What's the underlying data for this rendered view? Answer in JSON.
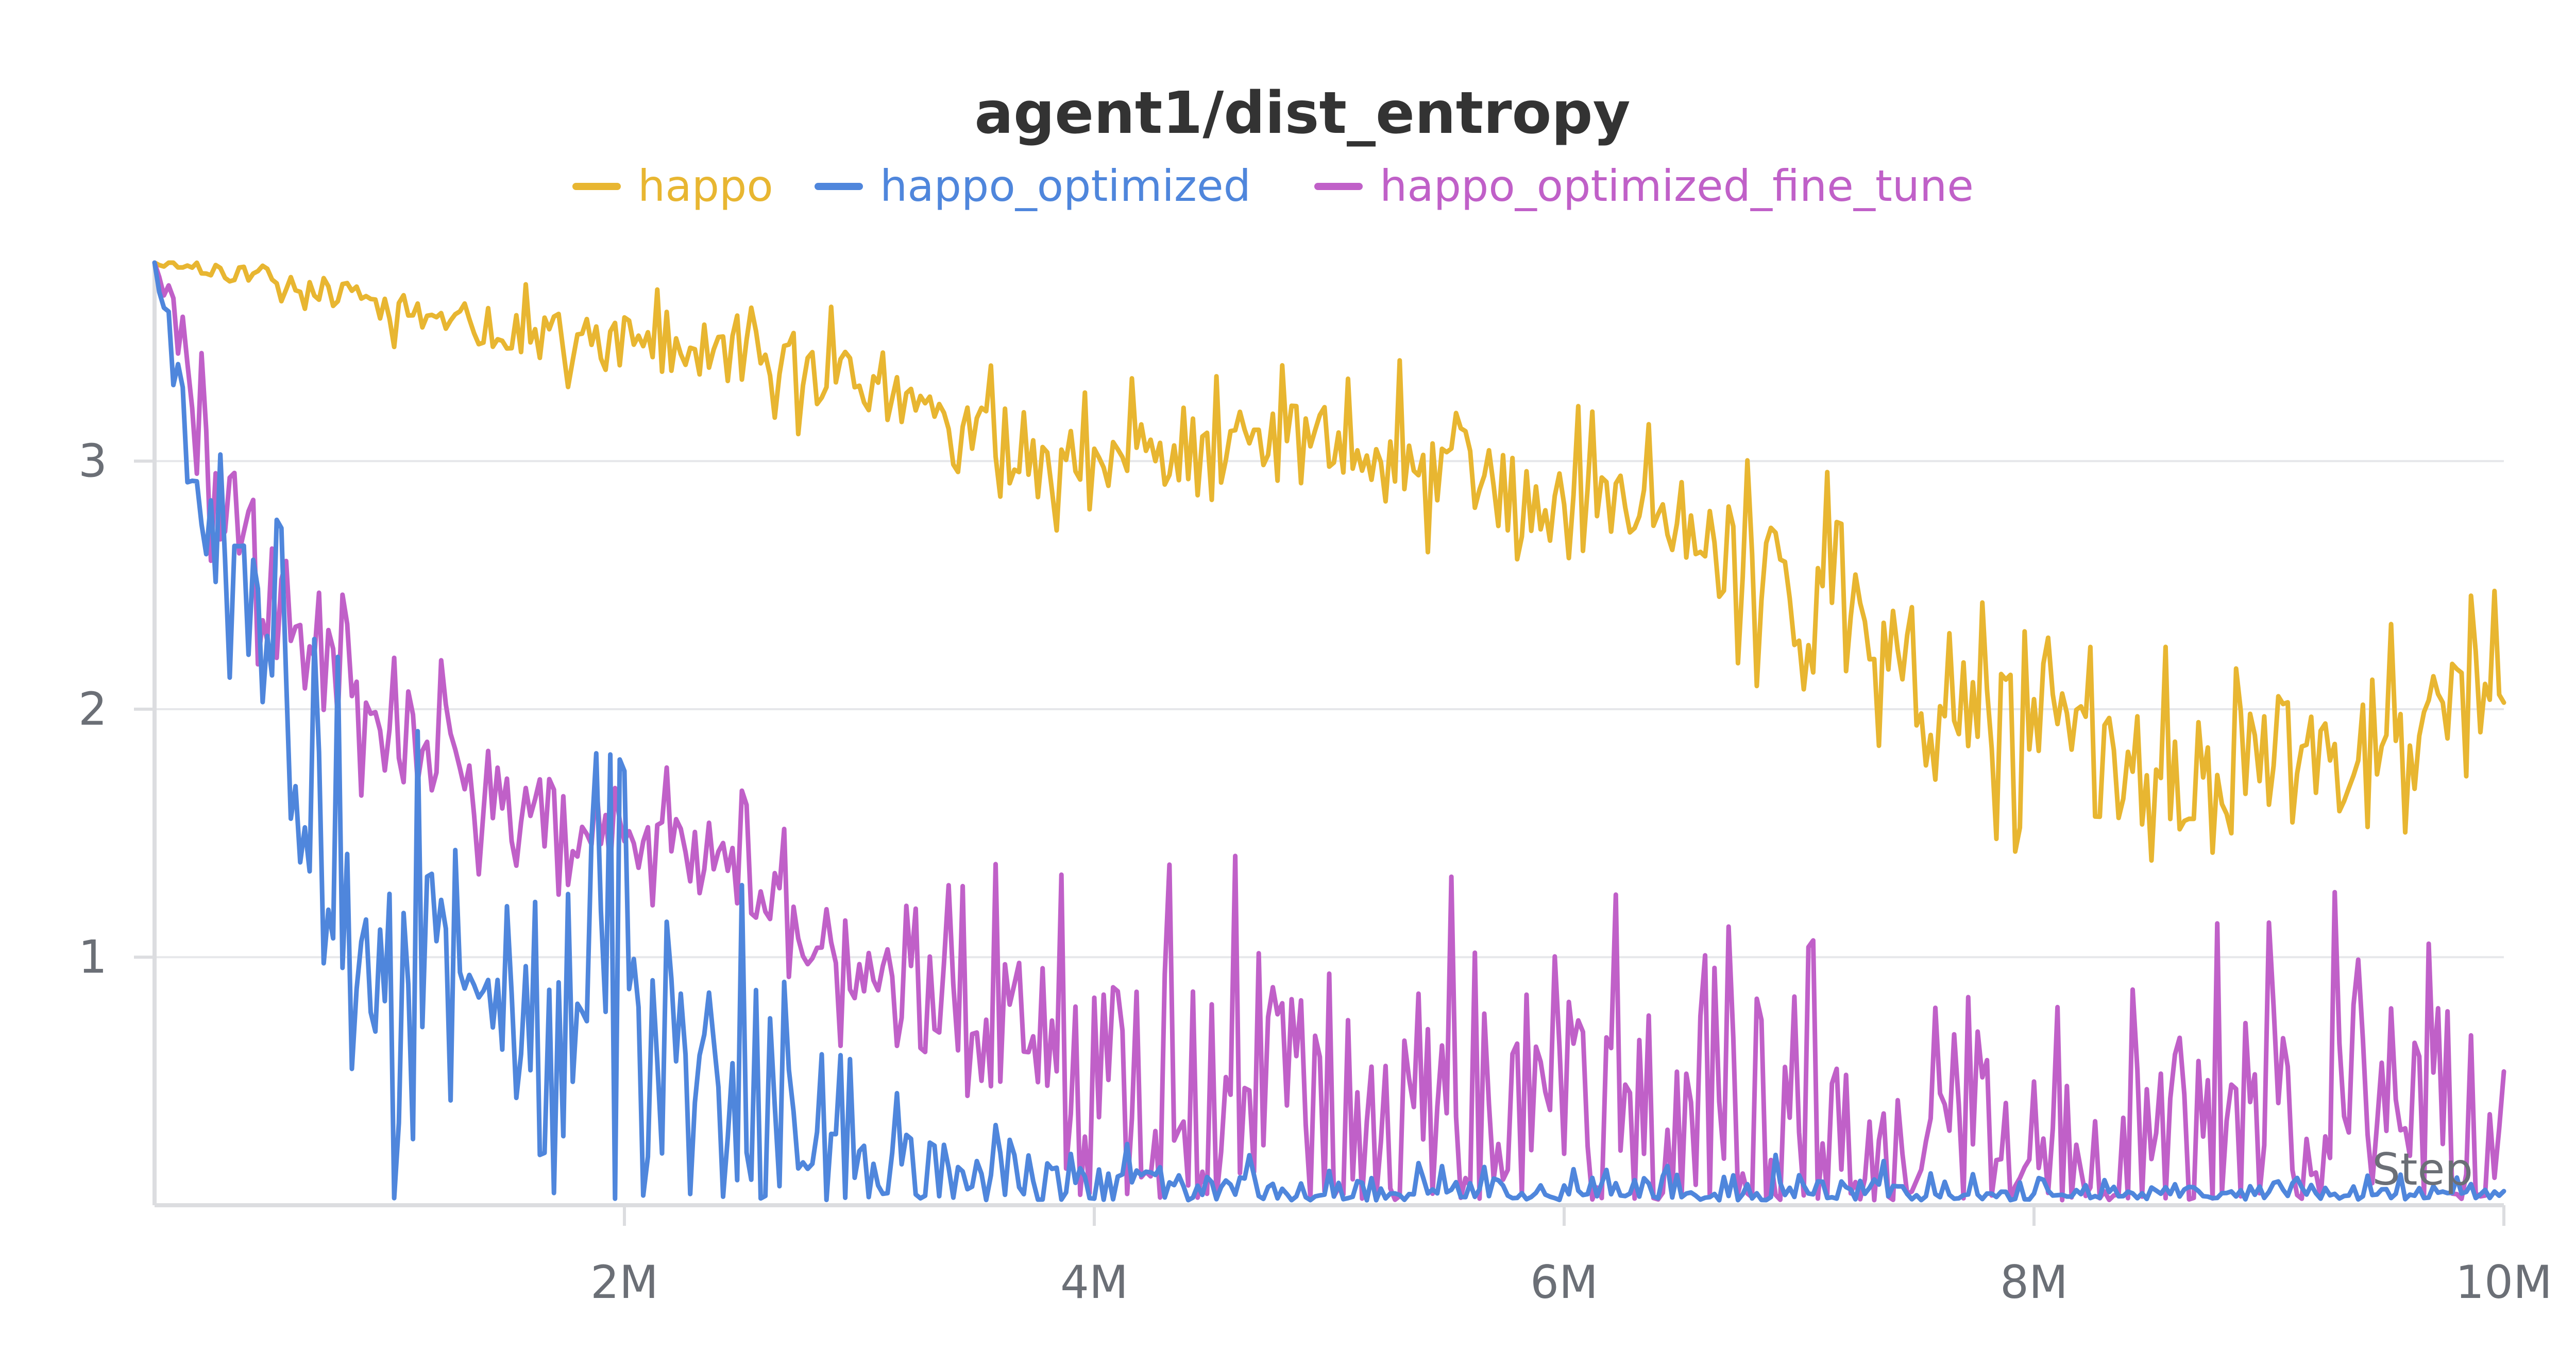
{
  "chart_data": {
    "type": "line",
    "title": "agent1/dist_entropy",
    "xlabel": "Step",
    "ylabel": "",
    "xlim": [
      0,
      10000000
    ],
    "ylim": [
      0,
      3.8
    ],
    "x_ticks": [
      {
        "value": 2000000,
        "label": "2M"
      },
      {
        "value": 4000000,
        "label": "4M"
      },
      {
        "value": 6000000,
        "label": "6M"
      },
      {
        "value": 8000000,
        "label": "8M"
      },
      {
        "value": 10000000,
        "label": "10M"
      }
    ],
    "y_ticks": [
      {
        "value": 1,
        "label": "1"
      },
      {
        "value": 2,
        "label": "2"
      },
      {
        "value": 3,
        "label": "3"
      }
    ],
    "grid": true,
    "legend_position": "top-center",
    "series": [
      {
        "name": "happo",
        "color": "#e8b631",
        "x": [
          0,
          500000,
          1000000,
          1500000,
          2000000,
          2500000,
          3000000,
          3500000,
          4000000,
          4500000,
          5000000,
          5500000,
          6000000,
          6500000,
          7000000,
          7500000,
          8000000,
          8500000,
          9000000,
          9500000,
          10000000
        ],
        "y": [
          3.8,
          3.74,
          3.62,
          3.52,
          3.48,
          3.42,
          3.3,
          3.08,
          3.0,
          3.08,
          3.05,
          3.0,
          2.78,
          2.75,
          2.45,
          2.2,
          1.82,
          1.72,
          1.8,
          1.9,
          2.1
        ],
        "noise": [
          0.01,
          0.04,
          0.07,
          0.09,
          0.1,
          0.12,
          0.14,
          0.15,
          0.15,
          0.16,
          0.17,
          0.18,
          0.2,
          0.22,
          0.3,
          0.28,
          0.26,
          0.24,
          0.22,
          0.2,
          0.2
        ]
      },
      {
        "name": "happo_optimized",
        "color": "#4f86dc",
        "x": [
          0,
          100000,
          200000,
          300000,
          400000,
          500000,
          600000,
          800000,
          1000000,
          1300000,
          1600000,
          2000000,
          2500000,
          2800000,
          3000000,
          3500000,
          4000000,
          5000000,
          6000000,
          7000000,
          8000000,
          9000000,
          10000000
        ],
        "y": [
          3.8,
          3.3,
          2.8,
          2.6,
          2.4,
          2.2,
          1.55,
          1.25,
          1.05,
          0.8,
          0.75,
          0.7,
          0.55,
          0.3,
          0.18,
          0.12,
          0.08,
          0.06,
          0.05,
          0.05,
          0.04,
          0.04,
          0.04
        ],
        "noise": [
          0.02,
          0.1,
          0.15,
          0.2,
          0.25,
          0.35,
          0.45,
          0.45,
          0.5,
          0.5,
          0.55,
          0.55,
          0.45,
          0.3,
          0.15,
          0.12,
          0.08,
          0.06,
          0.06,
          0.08,
          0.05,
          0.04,
          0.04
        ]
      },
      {
        "name": "happo_optimized_fine_tune",
        "color": "#c060c8",
        "x": [
          0,
          100000,
          200000,
          400000,
          600000,
          800000,
          1000000,
          1300000,
          1600000,
          2000000,
          2500000,
          3000000,
          3500000,
          4000000,
          4500000,
          5000000,
          6000000,
          7000000,
          7500000,
          8000000,
          8500000,
          9000000,
          9500000,
          10000000
        ],
        "y": [
          3.8,
          3.6,
          3.0,
          2.6,
          2.3,
          2.05,
          1.95,
          1.8,
          1.6,
          1.5,
          1.35,
          0.95,
          0.7,
          0.55,
          0.45,
          0.42,
          0.38,
          0.28,
          0.22,
          0.25,
          0.3,
          0.38,
          0.4,
          0.4
        ],
        "noise": [
          0.02,
          0.1,
          0.2,
          0.25,
          0.2,
          0.2,
          0.18,
          0.2,
          0.18,
          0.15,
          0.15,
          0.18,
          0.3,
          0.45,
          0.45,
          0.45,
          0.45,
          0.4,
          0.3,
          0.3,
          0.35,
          0.4,
          0.45,
          0.45
        ]
      }
    ]
  }
}
